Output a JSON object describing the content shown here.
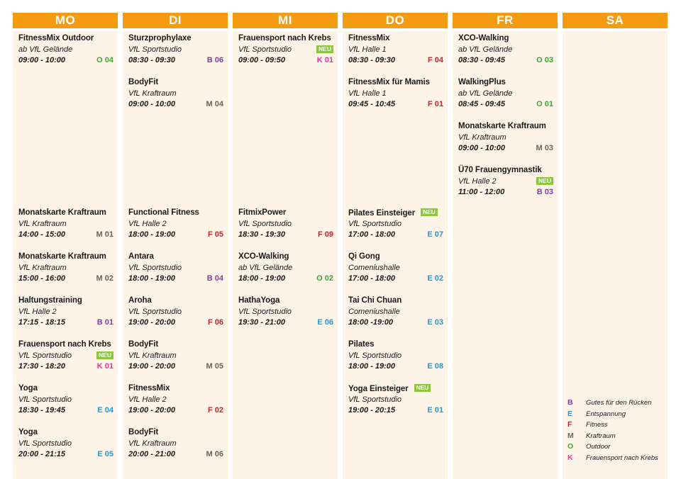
{
  "colors": {
    "header": "#f39c12",
    "column_background": "#fdf3e7",
    "neu_badge": "#8cc63e",
    "B": "#7b3fa0",
    "E": "#1f9ad6",
    "F": "#d0202a",
    "M": "#6b6353",
    "O": "#3aa935",
    "K": "#e0369a"
  },
  "days": [
    {
      "label": "MO",
      "entries": [
        {
          "title": "FitnessMix Outdoor",
          "location": "ab VfL Gelände",
          "time": "09:00 - 10:00",
          "code": "O 04",
          "cat": "O"
        },
        {
          "title": "Monatskarte Kraftraum",
          "location": "VfL Kraftraum",
          "time": "14:00 - 15:00",
          "code": "M 01",
          "cat": "M"
        },
        {
          "title": "Monatskarte Kraftraum",
          "location": "VfL Kraftraum",
          "time": "15:00 - 16:00",
          "code": "M 02",
          "cat": "M"
        },
        {
          "title": "Haltungstraining",
          "location": "VfL Halle 2",
          "time": "17:15 - 18:15",
          "code": "B 01",
          "cat": "B"
        },
        {
          "title": "Frauensport nach Krebs",
          "location": "VfL Sportstudio",
          "time": "17:30 - 18:20",
          "code": "K 01",
          "cat": "K",
          "neu": "NEU"
        },
        {
          "title": "Yoga",
          "location": "VfL Sportstudio",
          "time": "18:30 - 19:45",
          "code": "E 04",
          "cat": "E"
        },
        {
          "title": "Yoga",
          "location": "VfL Sportstudio",
          "time": "20:00 - 21:15",
          "code": "E 05",
          "cat": "E"
        }
      ]
    },
    {
      "label": "DI",
      "entries": [
        {
          "title": "Sturzprophylaxe",
          "location": "VfL Sportstudio",
          "time": "08:30 - 09:30",
          "code": "B 06",
          "cat": "B"
        },
        {
          "title": "BodyFit",
          "location": "VfL Kraftraum",
          "time": "09:00 - 10:00",
          "code": "M 04",
          "cat": "M"
        },
        {
          "title": "Functional Fitness",
          "location": "VfL Halle 2",
          "time": "18:00 - 19:00",
          "code": "F 05",
          "cat": "F"
        },
        {
          "title": "Antara",
          "location": "VfL Sportstudio",
          "time": "18:00 - 19:00",
          "code": "B 04",
          "cat": "B"
        },
        {
          "title": "Aroha",
          "location": "VfL Sportstudio",
          "time": "19:00 - 20:00",
          "code": "F 06",
          "cat": "F"
        },
        {
          "title": "BodyFit",
          "location": "VfL Kraftraum",
          "time": "19:00 - 20:00",
          "code": "M 05",
          "cat": "M"
        },
        {
          "title": "FitnessMix",
          "location": "VfL Halle 2",
          "time": "19:00 - 20:00",
          "code": "F 02",
          "cat": "F"
        },
        {
          "title": "BodyFit",
          "location": "VfL Kraftraum",
          "time": "20:00 - 21:00",
          "code": "M 06",
          "cat": "M"
        }
      ]
    },
    {
      "label": "MI",
      "entries": [
        {
          "title": "Frauensport nach Krebs",
          "location": "VfL Sportstudio",
          "time": "09:00 - 09:50",
          "code": "K 01",
          "cat": "K",
          "neu": "NEU"
        },
        {
          "title": "FitmixPower",
          "location": "VfL Sportstudio",
          "time": "18:30 - 19:30",
          "code": "F 09",
          "cat": "F"
        },
        {
          "title": "XCO-Walking",
          "location": "ab VfL Gelände",
          "time": "18:00 - 19:00",
          "code": "O 02",
          "cat": "O"
        },
        {
          "title": "HathaYoga",
          "location": "VfL Sportstudio",
          "time": "19:30 - 21:00",
          "code": "E 06",
          "cat": "E"
        }
      ]
    },
    {
      "label": "DO",
      "entries": [
        {
          "title": "FitnessMix",
          "location": "VfL Halle 1",
          "time": "08:30 - 09:30",
          "code": "F 04",
          "cat": "F"
        },
        {
          "title": "FitnessMix für Mamis",
          "location": "VfL Halle 1",
          "time": "09:45 - 10:45",
          "code": "F 01",
          "cat": "F"
        },
        {
          "title": "Pilates Einsteiger",
          "location": "VfL Sportstudio",
          "time": "17:00 - 18:00",
          "code": "E 07",
          "cat": "E",
          "neu_inline": "NEU"
        },
        {
          "title": "Qi Gong",
          "location": "Comeniushalle",
          "time": "17:00 - 18:00",
          "code": "E 02",
          "cat": "E"
        },
        {
          "title": "Tai Chi Chuan",
          "location": "Comeniushalle",
          "time": "18:00 -19:00",
          "code": "E 03",
          "cat": "E"
        },
        {
          "title": "Pilates",
          "location": "VfL Sportstudio",
          "time": "18:00 - 19:00",
          "code": "E 08",
          "cat": "E"
        },
        {
          "title": "Yoga Einsteiger",
          "location": "VfL Sportstudio",
          "time": "19:00 - 20:15",
          "code": "E 01",
          "cat": "E",
          "neu_inline": "NEU"
        }
      ]
    },
    {
      "label": "FR",
      "entries": [
        {
          "title": "XCO-Walking",
          "location": "ab VfL Gelände",
          "time": "08:30 - 09:45",
          "code": "O 03",
          "cat": "O"
        },
        {
          "title": "WalkingPlus",
          "location": "ab VfL Gelände",
          "time": "08:45 - 09:45",
          "code": "O 01",
          "cat": "O"
        },
        {
          "title": "Monatskarte Kraftraum",
          "location": "VfL Kraftraum",
          "time": "09:00 - 10:00",
          "code": "M 03",
          "cat": "M"
        },
        {
          "title": "Ü70 Frauengymnastik",
          "location": "VfL Halle 2",
          "time": "11:00 - 12:00",
          "code": "B 03",
          "cat": "B",
          "neu": "NEU"
        }
      ]
    },
    {
      "label": "SA",
      "entries": []
    }
  ],
  "legend": [
    {
      "letter": "B",
      "label": "Gutes für den Rücken"
    },
    {
      "letter": "E",
      "label": "Entspannung"
    },
    {
      "letter": "F",
      "label": "Fitness"
    },
    {
      "letter": "M",
      "label": "Kraftraum"
    },
    {
      "letter": "O",
      "label": "Outdoor"
    },
    {
      "letter": "K",
      "label": "Frauensport nach Krebs"
    }
  ]
}
